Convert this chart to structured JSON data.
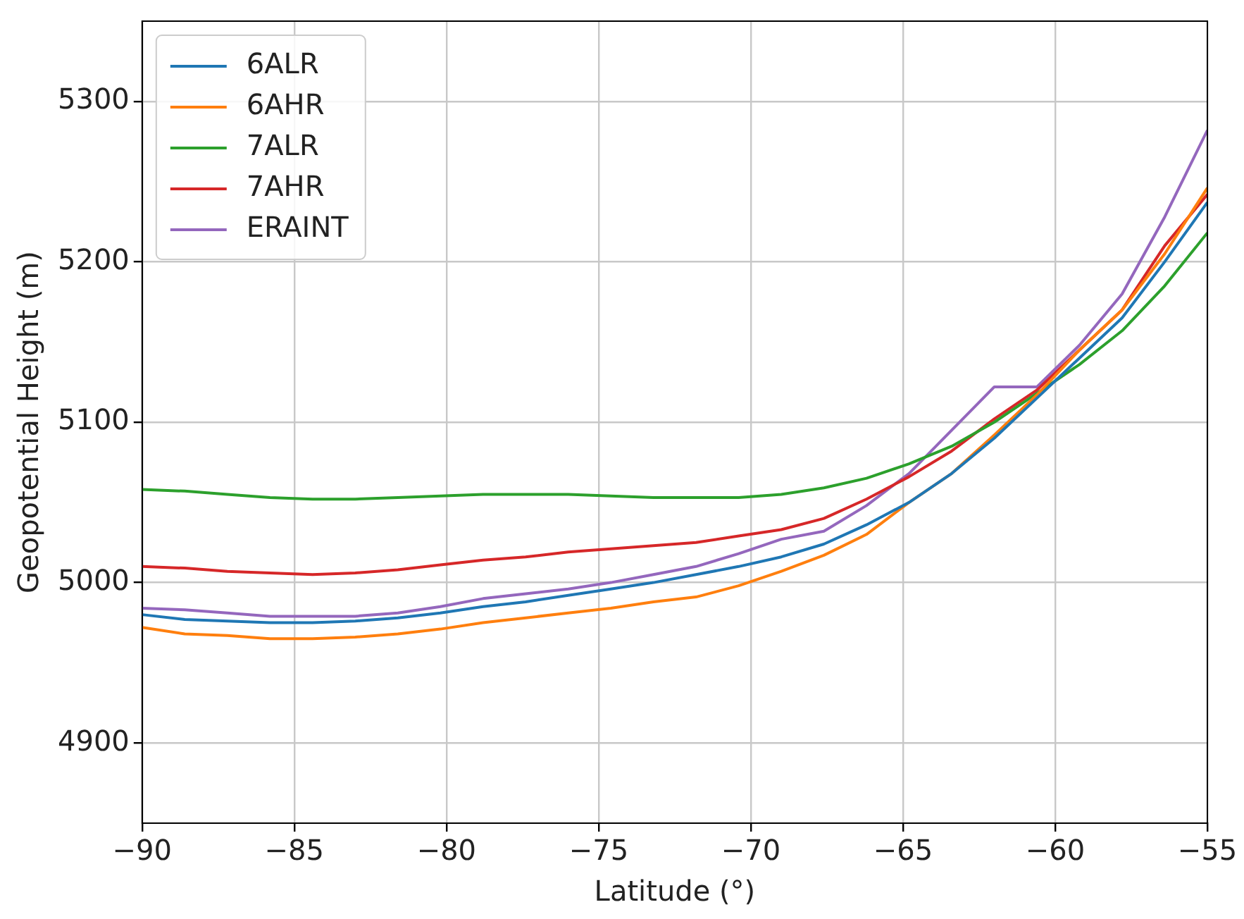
{
  "chart_data": {
    "type": "line",
    "xlabel": "Latitude (°)",
    "ylabel": "Geopotential Height (m)",
    "x": [
      -90,
      -88.6,
      -87.2,
      -85.8,
      -84.4,
      -83,
      -81.6,
      -80.2,
      -78.8,
      -77.4,
      -76,
      -74.6,
      -73.2,
      -71.8,
      -70.4,
      -69,
      -67.6,
      -66.2,
      -64.8,
      -63.4,
      -62,
      -60.6,
      -59.2,
      -57.8,
      -56.4,
      -55
    ],
    "series": [
      {
        "name": "6ALR",
        "color": "#1f77b4",
        "values": [
          4980,
          4977,
          4976,
          4975,
          4975,
          4976,
          4978,
          4981,
          4985,
          4988,
          4992,
          4996,
          5000,
          5005,
          5010,
          5016,
          5024,
          5036,
          5050,
          5068,
          5090,
          5115,
          5140,
          5165,
          5200,
          5237
        ]
      },
      {
        "name": "6AHR",
        "color": "#ff7f0e",
        "values": [
          4972,
          4968,
          4967,
          4965,
          4965,
          4966,
          4968,
          4971,
          4975,
          4978,
          4981,
          4984,
          4988,
          4991,
          4998,
          5007,
          5017,
          5030,
          5050,
          5068,
          5092,
          5117,
          5145,
          5170,
          5205,
          5246
        ]
      },
      {
        "name": "7ALR",
        "color": "#2ca02c",
        "values": [
          5058,
          5057,
          5055,
          5053,
          5052,
          5052,
          5053,
          5054,
          5055,
          5055,
          5055,
          5054,
          5053,
          5053,
          5053,
          5055,
          5059,
          5065,
          5074,
          5085,
          5100,
          5118,
          5136,
          5157,
          5185,
          5218
        ]
      },
      {
        "name": "7AHR",
        "color": "#d62728",
        "values": [
          5010,
          5009,
          5007,
          5006,
          5005,
          5006,
          5008,
          5011,
          5014,
          5016,
          5019,
          5021,
          5023,
          5025,
          5029,
          5033,
          5040,
          5052,
          5066,
          5082,
          5102,
          5120,
          5145,
          5170,
          5210,
          5242
        ]
      },
      {
        "name": "ERAINT",
        "color": "#9467bd",
        "values": [
          4984,
          4983,
          4981,
          4979,
          4979,
          4979,
          4981,
          4985,
          4990,
          4993,
          4996,
          5000,
          5005,
          5010,
          5018,
          5027,
          5032,
          5048,
          5068,
          5095,
          5122,
          5122,
          5148,
          5180,
          5228,
          5282
        ]
      }
    ],
    "xlim": [
      -90,
      -55
    ],
    "xticks": [
      -90,
      -85,
      -80,
      -75,
      -70,
      -65,
      -60,
      -55
    ],
    "ylim": [
      4850,
      5350
    ],
    "yticks": [
      4900,
      5000,
      5100,
      5200,
      5300
    ],
    "grid": true,
    "legend": "top left",
    "marker": "none",
    "line_style": "solid"
  }
}
